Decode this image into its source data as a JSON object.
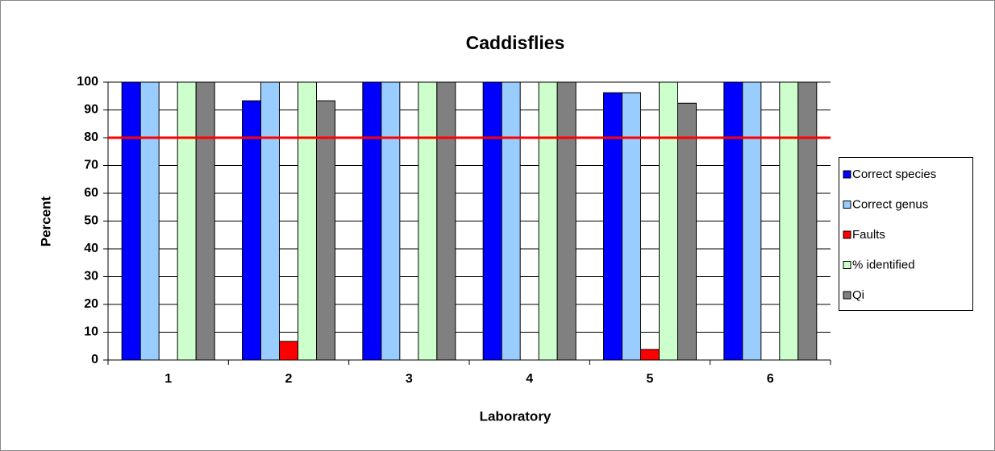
{
  "chart_data": {
    "type": "bar",
    "title": "Caddisflies",
    "x_label": "Laboratory",
    "y_label": "Percent",
    "categories": [
      "1",
      "2",
      "3",
      "4",
      "5",
      "6"
    ],
    "series": [
      {
        "name": "Correct species",
        "color": "#0000ff",
        "values": [
          100,
          93.3,
          100,
          100,
          96.2,
          100
        ]
      },
      {
        "name": "Correct genus",
        "color": "#99ccff",
        "values": [
          100,
          100,
          100,
          100,
          96.2,
          100
        ]
      },
      {
        "name": "Faults",
        "color": "#ff0000",
        "values": [
          0,
          6.7,
          0,
          0,
          3.8,
          0
        ]
      },
      {
        "name": "% identified",
        "color": "#ccffcc",
        "values": [
          100,
          100,
          100,
          100,
          100,
          100
        ]
      },
      {
        "name": "Qi",
        "color": "#808080",
        "values": [
          100,
          93.3,
          100,
          100,
          92.4,
          100
        ]
      }
    ],
    "reference_line": {
      "value": 80,
      "color": "#ff0000"
    },
    "ylim": [
      0,
      100
    ],
    "yticks": [
      0,
      10,
      20,
      30,
      40,
      50,
      60,
      70,
      80,
      90,
      100
    ],
    "grid": true,
    "legend": "right"
  }
}
